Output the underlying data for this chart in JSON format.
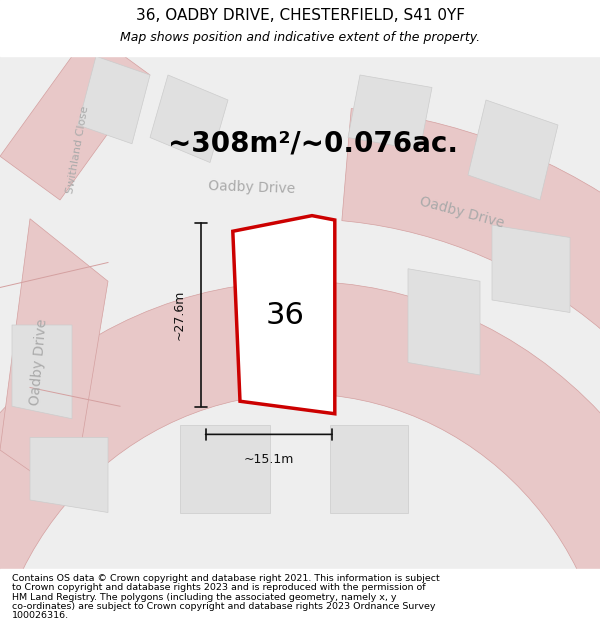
{
  "title": "36, OADBY DRIVE, CHESTERFIELD, S41 0YF",
  "subtitle": "Map shows position and indicative extent of the property.",
  "area_label": "~308m²/~0.076ac.",
  "number_label": "36",
  "width_label": "~15.1m",
  "height_label": "~27.6m",
  "footer_lines": [
    "Contains OS data © Crown copyright and database right 2021. This information is subject",
    "to Crown copyright and database rights 2023 and is reproduced with the permission of",
    "HM Land Registry. The polygons (including the associated geometry, namely x, y",
    "co-ordinates) are subject to Crown copyright and database rights 2023 Ordnance Survey",
    "100026316."
  ],
  "bg_color": "#f2f2f2",
  "map_bg": "#eeeeee",
  "plot_color": "#cc0000",
  "plot_fill": "#ffffff",
  "road_fill": "#e8c8c8",
  "road_edge": "#d4a0a0",
  "block_fill": "#e0e0e0",
  "block_edge": "#cccccc",
  "street_label_color": "#aaaaaa",
  "dim_color": "#111111",
  "title_fontsize": 11,
  "subtitle_fontsize": 9,
  "area_fontsize": 20,
  "number_fontsize": 22,
  "road_fontsize": 10,
  "swithland_fontsize": 8,
  "footer_fontsize": 6.8,
  "dim_fontsize": 9
}
